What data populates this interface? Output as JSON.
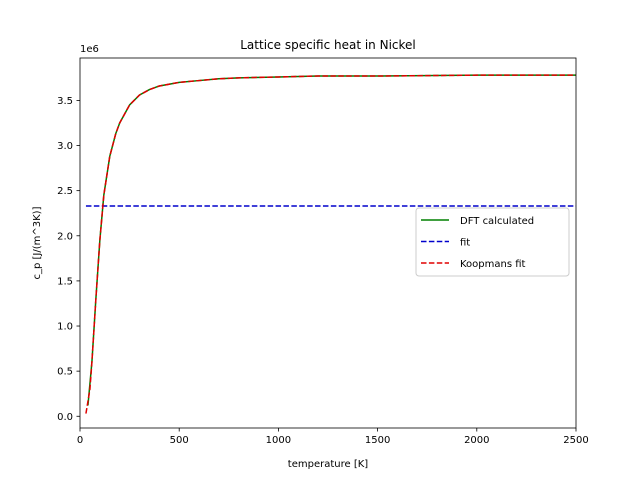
{
  "chart_data": {
    "type": "line",
    "title": "Lattice specific heat in Nickel",
    "xlabel": "temperature [K]",
    "ylabel": "c_p [J/(m^3K)]",
    "offset_text": "1e6",
    "xlim": [
      0,
      2500
    ],
    "ylim": [
      -0.13,
      3.97
    ],
    "y_scale": 1000000,
    "xticks": [
      0,
      500,
      1000,
      1500,
      2000,
      2500
    ],
    "xtick_labels": [
      "0",
      "500",
      "1000",
      "1500",
      "2000",
      "2500"
    ],
    "yticks": [
      0.0,
      0.5,
      1.0,
      1.5,
      2.0,
      2.5,
      3.0,
      3.5
    ],
    "ytick_labels": [
      "0.0",
      "0.5",
      "1.0",
      "1.5",
      "2.0",
      "2.5",
      "3.0",
      "3.5"
    ],
    "grid": false,
    "legend_position": "center-right",
    "series": [
      {
        "name": "DFT calculated",
        "color": "#008000",
        "linestyle": "solid",
        "x": [
          40,
          60,
          80,
          100,
          120,
          150,
          180,
          200,
          250,
          300,
          350,
          400,
          500,
          600,
          700,
          800,
          1000,
          1200,
          1500,
          2000,
          2500
        ],
        "y": [
          0.12,
          0.6,
          1.3,
          1.95,
          2.45,
          2.88,
          3.13,
          3.25,
          3.45,
          3.56,
          3.62,
          3.66,
          3.7,
          3.72,
          3.74,
          3.75,
          3.76,
          3.77,
          3.77,
          3.78,
          3.78
        ]
      },
      {
        "name": "fit",
        "color": "#0000cc",
        "linestyle": "dashed",
        "x": [
          30,
          2500
        ],
        "y": [
          2.33,
          2.33
        ]
      },
      {
        "name": "Koopmans fit",
        "color": "#e00000",
        "linestyle": "dashed",
        "x": [
          30,
          50,
          60,
          80,
          100,
          120,
          150,
          180,
          200,
          250,
          300,
          350,
          400,
          500,
          600,
          700,
          800,
          1000,
          1200,
          1500,
          2000,
          2500
        ],
        "y": [
          0.03,
          0.3,
          0.6,
          1.3,
          1.95,
          2.45,
          2.88,
          3.13,
          3.25,
          3.45,
          3.56,
          3.62,
          3.66,
          3.7,
          3.72,
          3.74,
          3.75,
          3.76,
          3.77,
          3.77,
          3.78,
          3.78
        ]
      }
    ]
  }
}
